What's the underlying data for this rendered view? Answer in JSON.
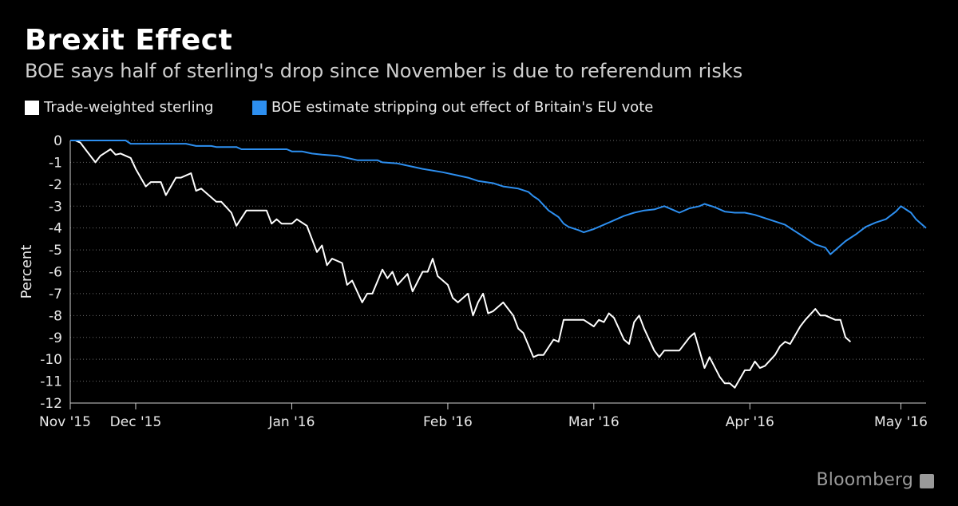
{
  "title": "Brexit Effect",
  "subtitle": "BOE says half of sterling's drop since November is due to referendum risks",
  "legend": [
    {
      "label": "Trade-weighted sterling",
      "color": "#ffffff"
    },
    {
      "label": "BOE estimate stripping out effect of Britain's EU vote",
      "color": "#2d8ff0"
    }
  ],
  "brand": "Bloomberg",
  "brand_icon": "bloomberg-chat-icon",
  "chart_data": {
    "type": "line",
    "title": "Brexit Effect",
    "subtitle": "BOE says half of sterling's drop since November is due to referendum risks",
    "xlabel": "",
    "ylabel": "Percent",
    "ylim": [
      -12,
      0
    ],
    "yticks": [
      0,
      -1,
      -2,
      -3,
      -4,
      -5,
      -6,
      -7,
      -8,
      -9,
      -10,
      -11,
      -12
    ],
    "xlim": [
      "2015-11-18",
      "2016-05-06"
    ],
    "xticks": [
      {
        "date": "2015-11-18",
        "label": "Nov '15"
      },
      {
        "date": "2015-12-01",
        "label": "Dec '15"
      },
      {
        "date": "2016-01-01",
        "label": "Jan '16"
      },
      {
        "date": "2016-02-01",
        "label": "Feb '16"
      },
      {
        "date": "2016-03-01",
        "label": "Mar '16"
      },
      {
        "date": "2016-04-01",
        "label": "Apr '16"
      },
      {
        "date": "2016-05-01",
        "label": "May '16"
      }
    ],
    "grid": true,
    "legend_position": "top-left",
    "series": [
      {
        "name": "Trade-weighted sterling",
        "color": "#ffffff",
        "points": [
          [
            "2015-11-18",
            0.0
          ],
          [
            "2015-11-19",
            0.0
          ],
          [
            "2015-11-20",
            -0.1
          ],
          [
            "2015-11-21",
            -0.4
          ],
          [
            "2015-11-23",
            -1.0
          ],
          [
            "2015-11-24",
            -0.7
          ],
          [
            "2015-11-26",
            -0.4
          ],
          [
            "2015-11-27",
            -0.65
          ],
          [
            "2015-11-28",
            -0.6
          ],
          [
            "2015-11-30",
            -0.8
          ],
          [
            "2015-12-01",
            -1.3
          ],
          [
            "2015-12-03",
            -2.1
          ],
          [
            "2015-12-04",
            -1.9
          ],
          [
            "2015-12-06",
            -1.9
          ],
          [
            "2015-12-07",
            -2.5
          ],
          [
            "2015-12-09",
            -1.7
          ],
          [
            "2015-12-10",
            -1.7
          ],
          [
            "2015-12-12",
            -1.5
          ],
          [
            "2015-12-13",
            -2.3
          ],
          [
            "2015-12-14",
            -2.2
          ],
          [
            "2015-12-16",
            -2.6
          ],
          [
            "2015-12-17",
            -2.8
          ],
          [
            "2015-12-18",
            -2.8
          ],
          [
            "2015-12-20",
            -3.3
          ],
          [
            "2015-12-21",
            -3.9
          ],
          [
            "2015-12-23",
            -3.2
          ],
          [
            "2015-12-24",
            -3.2
          ],
          [
            "2015-12-26",
            -3.2
          ],
          [
            "2015-12-27",
            -3.2
          ],
          [
            "2015-12-28",
            -3.8
          ],
          [
            "2015-12-29",
            -3.6
          ],
          [
            "2015-12-30",
            -3.8
          ],
          [
            "2015-12-31",
            -3.8
          ],
          [
            "2016-01-01",
            -3.8
          ],
          [
            "2016-01-02",
            -3.6
          ],
          [
            "2016-01-04",
            -3.9
          ],
          [
            "2016-01-05",
            -4.5
          ],
          [
            "2016-01-06",
            -5.1
          ],
          [
            "2016-01-07",
            -4.8
          ],
          [
            "2016-01-08",
            -5.7
          ],
          [
            "2016-01-09",
            -5.4
          ],
          [
            "2016-01-11",
            -5.6
          ],
          [
            "2016-01-12",
            -6.6
          ],
          [
            "2016-01-13",
            -6.4
          ],
          [
            "2016-01-15",
            -7.4
          ],
          [
            "2016-01-16",
            -7.0
          ],
          [
            "2016-01-17",
            -7.0
          ],
          [
            "2016-01-19",
            -5.9
          ],
          [
            "2016-01-20",
            -6.3
          ],
          [
            "2016-01-21",
            -6.0
          ],
          [
            "2016-01-22",
            -6.6
          ],
          [
            "2016-01-24",
            -6.1
          ],
          [
            "2016-01-25",
            -6.9
          ],
          [
            "2016-01-27",
            -6.0
          ],
          [
            "2016-01-28",
            -6.0
          ],
          [
            "2016-01-29",
            -5.4
          ],
          [
            "2016-01-30",
            -6.2
          ],
          [
            "2016-02-01",
            -6.6
          ],
          [
            "2016-02-02",
            -7.2
          ],
          [
            "2016-02-03",
            -7.4
          ],
          [
            "2016-02-05",
            -7.0
          ],
          [
            "2016-02-06",
            -8.0
          ],
          [
            "2016-02-07",
            -7.4
          ],
          [
            "2016-02-08",
            -7.0
          ],
          [
            "2016-02-09",
            -7.9
          ],
          [
            "2016-02-10",
            -7.8
          ],
          [
            "2016-02-12",
            -7.4
          ],
          [
            "2016-02-14",
            -8.0
          ],
          [
            "2016-02-15",
            -8.6
          ],
          [
            "2016-02-16",
            -8.8
          ],
          [
            "2016-02-18",
            -9.9
          ],
          [
            "2016-02-19",
            -9.8
          ],
          [
            "2016-02-20",
            -9.8
          ],
          [
            "2016-02-22",
            -9.1
          ],
          [
            "2016-02-23",
            -9.2
          ],
          [
            "2016-02-24",
            -8.2
          ],
          [
            "2016-02-26",
            -8.2
          ],
          [
            "2016-02-27",
            -8.2
          ],
          [
            "2016-02-28",
            -8.2
          ],
          [
            "2016-03-01",
            -8.5
          ],
          [
            "2016-03-02",
            -8.2
          ],
          [
            "2016-03-03",
            -8.3
          ],
          [
            "2016-03-04",
            -7.9
          ],
          [
            "2016-03-05",
            -8.1
          ],
          [
            "2016-03-07",
            -9.1
          ],
          [
            "2016-03-08",
            -9.3
          ],
          [
            "2016-03-09",
            -8.3
          ],
          [
            "2016-03-10",
            -8.0
          ],
          [
            "2016-03-11",
            -8.6
          ],
          [
            "2016-03-13",
            -9.6
          ],
          [
            "2016-03-14",
            -9.9
          ],
          [
            "2016-03-15",
            -9.6
          ],
          [
            "2016-03-17",
            -9.6
          ],
          [
            "2016-03-18",
            -9.6
          ],
          [
            "2016-03-20",
            -9.0
          ],
          [
            "2016-03-21",
            -8.8
          ],
          [
            "2016-03-22",
            -9.6
          ],
          [
            "2016-03-23",
            -10.4
          ],
          [
            "2016-03-24",
            -9.9
          ],
          [
            "2016-03-26",
            -10.8
          ],
          [
            "2016-03-27",
            -11.1
          ],
          [
            "2016-03-28",
            -11.1
          ],
          [
            "2016-03-29",
            -11.3
          ],
          [
            "2016-03-31",
            -10.5
          ],
          [
            "2016-04-01",
            -10.5
          ],
          [
            "2016-04-02",
            -10.1
          ],
          [
            "2016-04-03",
            -10.4
          ],
          [
            "2016-04-04",
            -10.3
          ],
          [
            "2016-04-06",
            -9.8
          ],
          [
            "2016-04-07",
            -9.4
          ],
          [
            "2016-04-08",
            -9.2
          ],
          [
            "2016-04-09",
            -9.3
          ],
          [
            "2016-04-11",
            -8.5
          ],
          [
            "2016-04-12",
            -8.2
          ],
          [
            "2016-04-14",
            -7.7
          ],
          [
            "2016-04-15",
            -8.0
          ],
          [
            "2016-04-16",
            -8.0
          ],
          [
            "2016-04-18",
            -8.2
          ],
          [
            "2016-04-19",
            -8.2
          ],
          [
            "2016-04-20",
            -9.0
          ],
          [
            "2016-04-21",
            -9.2
          ]
        ]
      },
      {
        "name": "BOE estimate stripping out effect of Britain's EU vote",
        "color": "#2d8ff0",
        "points": [
          [
            "2015-11-18",
            0.0
          ],
          [
            "2015-11-24",
            0.0
          ],
          [
            "2015-11-29",
            0.0
          ],
          [
            "2015-11-30",
            -0.15
          ],
          [
            "2015-12-06",
            -0.15
          ],
          [
            "2015-12-11",
            -0.15
          ],
          [
            "2015-12-13",
            -0.25
          ],
          [
            "2015-12-16",
            -0.25
          ],
          [
            "2015-12-17",
            -0.3
          ],
          [
            "2015-12-21",
            -0.3
          ],
          [
            "2015-12-22",
            -0.4
          ],
          [
            "2015-12-31",
            -0.4
          ],
          [
            "2016-01-01",
            -0.5
          ],
          [
            "2016-01-03",
            -0.5
          ],
          [
            "2016-01-05",
            -0.6
          ],
          [
            "2016-01-07",
            -0.65
          ],
          [
            "2016-01-10",
            -0.7
          ],
          [
            "2016-01-12",
            -0.8
          ],
          [
            "2016-01-14",
            -0.9
          ],
          [
            "2016-01-18",
            -0.9
          ],
          [
            "2016-01-19",
            -1.0
          ],
          [
            "2016-01-22",
            -1.05
          ],
          [
            "2016-01-25",
            -1.2
          ],
          [
            "2016-01-27",
            -1.3
          ],
          [
            "2016-01-31",
            -1.45
          ],
          [
            "2016-02-03",
            -1.6
          ],
          [
            "2016-02-05",
            -1.7
          ],
          [
            "2016-02-07",
            -1.85
          ],
          [
            "2016-02-10",
            -1.95
          ],
          [
            "2016-02-12",
            -2.1
          ],
          [
            "2016-02-15",
            -2.2
          ],
          [
            "2016-02-17",
            -2.35
          ],
          [
            "2016-02-18",
            -2.55
          ],
          [
            "2016-02-19",
            -2.7
          ],
          [
            "2016-02-21",
            -3.2
          ],
          [
            "2016-02-23",
            -3.5
          ],
          [
            "2016-02-24",
            -3.8
          ],
          [
            "2016-02-25",
            -3.95
          ],
          [
            "2016-02-27",
            -4.1
          ],
          [
            "2016-02-28",
            -4.2
          ],
          [
            "2016-03-01",
            -4.05
          ],
          [
            "2016-03-03",
            -3.85
          ],
          [
            "2016-03-05",
            -3.65
          ],
          [
            "2016-03-07",
            -3.45
          ],
          [
            "2016-03-09",
            -3.3
          ],
          [
            "2016-03-11",
            -3.2
          ],
          [
            "2016-03-13",
            -3.15
          ],
          [
            "2016-03-15",
            -3.0
          ],
          [
            "2016-03-17",
            -3.2
          ],
          [
            "2016-03-18",
            -3.3
          ],
          [
            "2016-03-20",
            -3.1
          ],
          [
            "2016-03-22",
            -3.0
          ],
          [
            "2016-03-23",
            -2.9
          ],
          [
            "2016-03-25",
            -3.05
          ],
          [
            "2016-03-27",
            -3.25
          ],
          [
            "2016-03-29",
            -3.3
          ],
          [
            "2016-03-31",
            -3.3
          ],
          [
            "2016-04-02",
            -3.4
          ],
          [
            "2016-04-04",
            -3.55
          ],
          [
            "2016-04-06",
            -3.7
          ],
          [
            "2016-04-08",
            -3.85
          ],
          [
            "2016-04-10",
            -4.15
          ],
          [
            "2016-04-12",
            -4.45
          ],
          [
            "2016-04-14",
            -4.75
          ],
          [
            "2016-04-16",
            -4.9
          ],
          [
            "2016-04-17",
            -5.2
          ],
          [
            "2016-04-18",
            -5.0
          ],
          [
            "2016-04-20",
            -4.6
          ],
          [
            "2016-04-22",
            -4.3
          ],
          [
            "2016-04-24",
            -3.95
          ],
          [
            "2016-04-26",
            -3.75
          ],
          [
            "2016-04-28",
            -3.6
          ],
          [
            "2016-04-30",
            -3.25
          ],
          [
            "2016-05-01",
            -3.0
          ],
          [
            "2016-05-02",
            -3.15
          ],
          [
            "2016-05-03",
            -3.3
          ],
          [
            "2016-05-04",
            -3.6
          ],
          [
            "2016-05-05",
            -3.8
          ],
          [
            "2016-05-06",
            -4.0
          ]
        ]
      }
    ]
  }
}
